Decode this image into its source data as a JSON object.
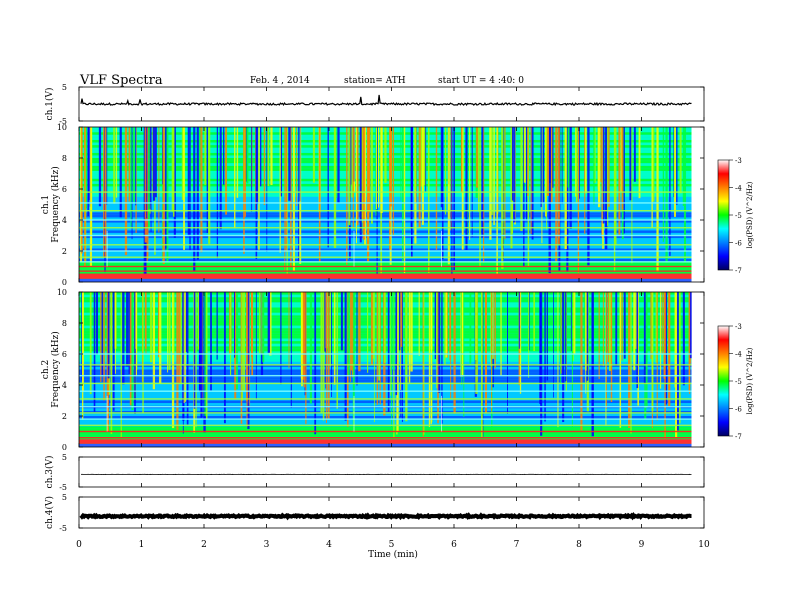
{
  "header": {
    "title": "VLF  Spectra",
    "date": "Feb. 4  , 2014",
    "station": "station= ATH",
    "start_ut": "start  UT  =   4  :40: 0"
  },
  "colorbar": {
    "label": "log(PSD) (V^2/Hz)",
    "ticks": [
      "-3",
      "-4",
      "-5",
      "-6",
      "-7"
    ],
    "colors": [
      "#ffffff",
      "#ff0000",
      "#ff8000",
      "#ffff00",
      "#00ff00",
      "#00ffff",
      "#0080ff",
      "#0000ff",
      "#000060"
    ]
  },
  "chart_data": [
    {
      "type": "line",
      "panel": "ch1-waveform",
      "ylabel": "ch.1(V)",
      "ylim": [
        -5,
        5
      ],
      "yticks": [
        "5",
        "-5"
      ],
      "description_values": {
        "baseline": 0,
        "noise_amplitude": 0.6
      }
    },
    {
      "type": "heatmap",
      "panel": "ch1-spectrogram",
      "ylabel_top": "ch.1",
      "ylabel": "Frequency  (kHz)",
      "ylim": [
        0,
        10
      ],
      "yticks": [
        "0",
        "2",
        "4",
        "6",
        "8",
        "10"
      ],
      "xlim": [
        0,
        10
      ],
      "data_end_min": 9.8,
      "horizontal_bands_khz": [
        0.3,
        0.5,
        0.7,
        1.0,
        1.3,
        1.6,
        2.0,
        2.4,
        3.0,
        3.5,
        4.0,
        4.6,
        5.1,
        5.8
      ],
      "transitions_min": [
        0.45,
        4.4,
        5.8
      ]
    },
    {
      "type": "heatmap",
      "panel": "ch2-spectrogram",
      "ylabel_top": "ch.2",
      "ylabel": "Frequency  (kHz)",
      "ylim": [
        0,
        10
      ],
      "yticks": [
        "0",
        "2",
        "4",
        "6",
        "8",
        "10"
      ],
      "xlim": [
        0,
        10
      ],
      "data_end_min": 9.8,
      "horizontal_bands_khz": [
        0.3,
        0.6,
        1.0,
        1.4,
        1.8,
        2.2,
        2.6,
        3.1,
        3.6,
        4.1,
        4.6,
        5.3,
        6.0
      ],
      "transitions_min": [
        0.45,
        4.4,
        5.8
      ]
    },
    {
      "type": "line",
      "panel": "ch3-waveform",
      "ylabel": "ch.3(V)",
      "ylim": [
        -5,
        5
      ],
      "yticks": [
        "5",
        "-5"
      ],
      "description_values": {
        "baseline": -0.8,
        "noise_amplitude": 0.1
      }
    },
    {
      "type": "line",
      "panel": "ch4-waveform",
      "ylabel": "ch.4(V)",
      "ylim": [
        -5,
        5
      ],
      "yticks": [
        "5",
        "-5"
      ],
      "description_values": {
        "baseline": -1.2,
        "noise_amplitude": 0.5
      }
    }
  ],
  "xaxis": {
    "label": "Time  (min)",
    "ticks": [
      "0",
      "1",
      "2",
      "3",
      "4",
      "5",
      "6",
      "7",
      "8",
      "9",
      "10"
    ],
    "xlim": [
      0,
      10
    ]
  }
}
